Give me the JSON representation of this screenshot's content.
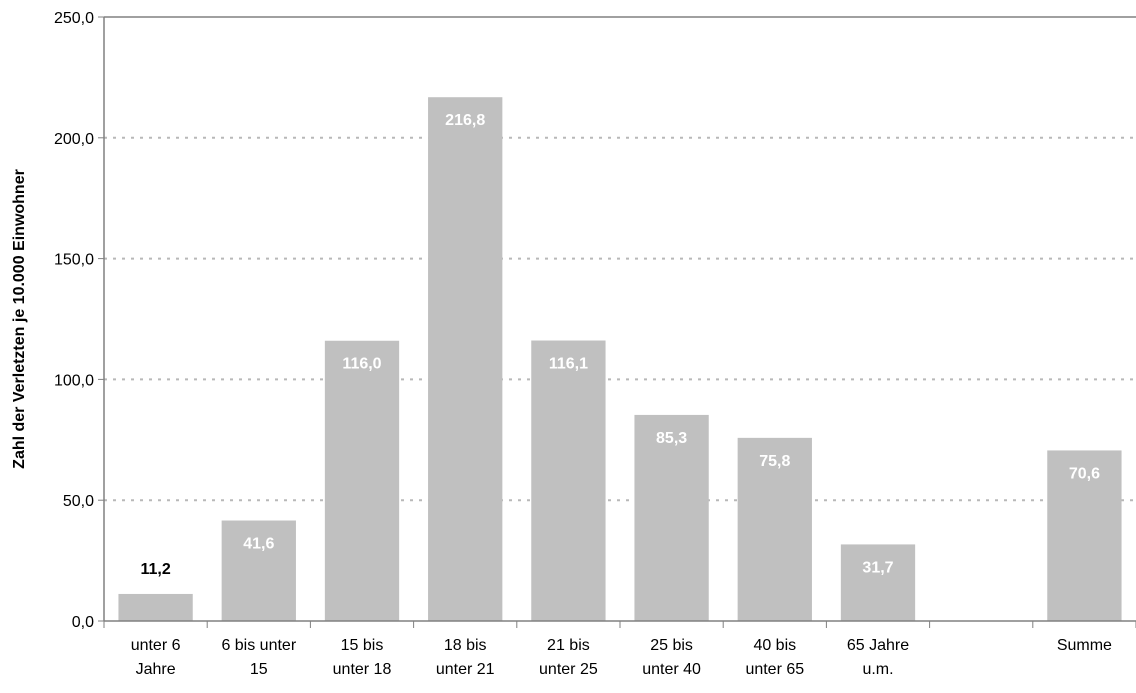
{
  "chart_data": {
    "type": "bar",
    "title": "",
    "xlabel": "",
    "ylabel": "Zahl der Verletzten je 10.000 Einwohner",
    "ylim": [
      0,
      250
    ],
    "yticks": [
      "0,0",
      "50,0",
      "100,0",
      "150,0",
      "200,0",
      "250,0"
    ],
    "grid": true,
    "categories": [
      [
        "unter 6",
        "Jahre"
      ],
      [
        "6 bis unter",
        "15"
      ],
      [
        "15 bis",
        "unter 18"
      ],
      [
        "18 bis",
        "unter 21"
      ],
      [
        "21 bis",
        "unter 25"
      ],
      [
        "25 bis",
        "unter 40"
      ],
      [
        "40 bis",
        "unter 65"
      ],
      [
        "65 Jahre",
        "u.m."
      ],
      [
        ""
      ],
      [
        "Summe"
      ]
    ],
    "values": [
      11.2,
      41.6,
      116.0,
      216.8,
      116.1,
      85.3,
      75.8,
      31.7,
      null,
      70.6
    ],
    "data_labels": [
      "11,2",
      "41,6",
      "116,0",
      "216,8",
      "116,1",
      "85,3",
      "75,8",
      "31,7",
      "",
      "70,6"
    ],
    "colors": {
      "bar": "#c0c0c0",
      "label_inside": "#ffffff",
      "label_outside": "#000000",
      "grid": "#b8b8b8",
      "axis": "#808080"
    }
  }
}
